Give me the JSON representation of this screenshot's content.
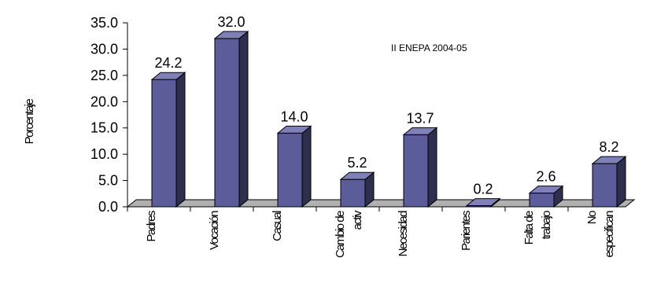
{
  "chart_data": {
    "type": "bar",
    "categories": [
      [
        "Padres"
      ],
      [
        "Vocación"
      ],
      [
        "Casual"
      ],
      [
        "Cambio de",
        "activ"
      ],
      [
        "Necesidad"
      ],
      [
        "Parientes"
      ],
      [
        "Falta de",
        "trabajo"
      ],
      [
        "No",
        "especifican"
      ]
    ],
    "values": [
      24.2,
      32.0,
      14.0,
      5.2,
      13.7,
      0.2,
      2.6,
      8.2
    ],
    "value_labels": [
      "24.2",
      "32.0",
      "14.0",
      "5.2",
      "13.7",
      "0.2",
      "2.6",
      "8.2"
    ],
    "y_ticks": [
      "0.0",
      "5.0",
      "10.0",
      "15.0",
      "20.0",
      "25.0",
      "30.0",
      "35.0"
    ],
    "ylabel": "Porcentaje",
    "annotation": "II ENEPA 2004-05",
    "ylim": [
      0,
      35
    ],
    "grid": false,
    "colors": {
      "bar_front": "#5c5c9a",
      "bar_side": "#2e2e4e",
      "bar_top": "#8080b8",
      "floor": "#b0b0b0"
    }
  }
}
